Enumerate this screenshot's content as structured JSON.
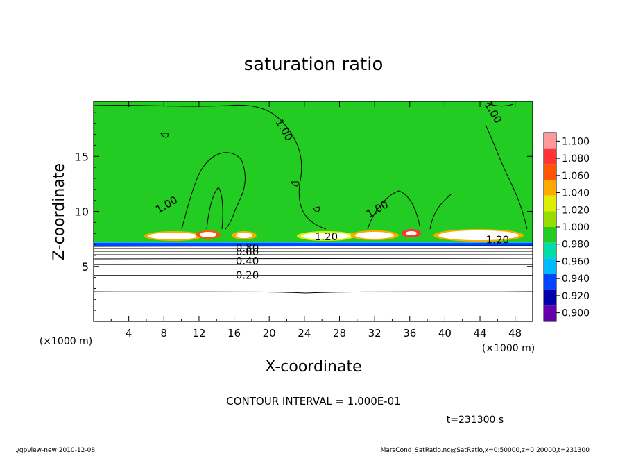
{
  "chart_data": {
    "type": "contour",
    "title": "saturation ratio",
    "xlabel": "X-coordinate",
    "ylabel": "Z-coordinate",
    "xunit_label": "(×1000 m)",
    "xunit_label_right": "(×1000 m)",
    "xlim": [
      0,
      50
    ],
    "ylim": [
      0,
      20
    ],
    "xticks": [
      4,
      8,
      12,
      16,
      20,
      24,
      28,
      32,
      36,
      40,
      44,
      48
    ],
    "yticks": [
      5,
      10,
      15
    ],
    "contour_interval_text": "CONTOUR INTERVAL = 1.000E-01",
    "time_text": "t=231300 s",
    "contour_labels": [
      {
        "text": "1.00",
        "x": 21.7,
        "z": 17.4
      },
      {
        "text": "1.00",
        "x": 8.3,
        "z": 10.6
      },
      {
        "text": "1.00",
        "x": 32.3,
        "z": 10.2
      },
      {
        "text": "1.00",
        "x": 45.5,
        "z": 19.0
      },
      {
        "text": "1.20",
        "x": 26.5,
        "z": 7.7
      },
      {
        "text": "1.20",
        "x": 46.0,
        "z": 7.4
      },
      {
        "text": "0.80",
        "x": 17.5,
        "z": 6.7
      },
      {
        "text": "0.60",
        "x": 17.5,
        "z": 6.3
      },
      {
        "text": "0.40",
        "x": 17.5,
        "z": 5.5
      },
      {
        "text": "0.20",
        "x": 17.5,
        "z": 4.2
      }
    ],
    "colorbar": {
      "levels": [
        "1.100",
        "1.080",
        "1.060",
        "1.040",
        "1.020",
        "1.000",
        "0.980",
        "0.960",
        "0.940",
        "0.920",
        "0.900"
      ],
      "colors": [
        "#ff9999",
        "#ff3333",
        "#ff5500",
        "#ffaa00",
        "#ddee00",
        "#99dd00",
        "#22cc22",
        "#00ddaa",
        "#00bbff",
        "#0044ff",
        "#0000aa",
        "#6600aa"
      ]
    }
  },
  "footer": {
    "left": "./gpview-new  2010-12-08",
    "right": "MarsCond_SatRatio.nc@SatRatio,x=0:50000,z=0:20000,t=231300"
  },
  "colors": {
    "green_field": "#22cc22",
    "lower_white": "#ffffff",
    "contour": "#000000"
  }
}
